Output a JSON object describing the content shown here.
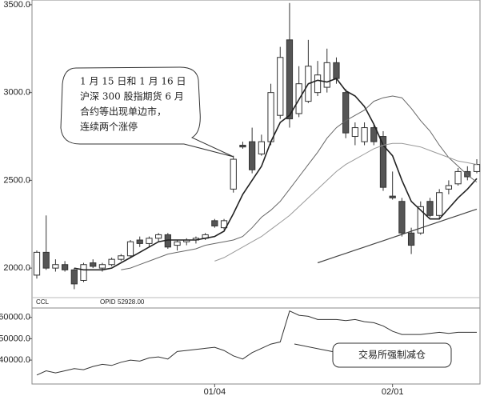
{
  "chart_data": [
    {
      "type": "candlestick",
      "categories": [
        null,
        null,
        null,
        null,
        null,
        null,
        null,
        null,
        null,
        null,
        null,
        null,
        null,
        null,
        null,
        null,
        null,
        null,
        null,
        "01/04",
        null,
        null,
        null,
        null,
        null,
        null,
        null,
        null,
        null,
        null,
        null,
        null,
        null,
        null,
        null,
        null,
        null,
        null,
        "02/01",
        null,
        null,
        null,
        null,
        null,
        null,
        null,
        null,
        null
      ],
      "open": [
        1960,
        2090,
        2000,
        2020,
        1990,
        1930,
        2030,
        2000,
        2020,
        2050,
        2070,
        2160,
        2140,
        2170,
        2190,
        2130,
        2150,
        2160,
        2170,
        2270,
        2230,
        2450,
        2700,
        2720,
        2650,
        2720,
        2870,
        3300,
        2880,
        2950,
        3000,
        3030,
        3170,
        3000,
        2750,
        2720,
        2800,
        2750,
        2410,
        2380,
        2200,
        2200,
        2380,
        2300,
        2450,
        2480,
        2550,
        2550
      ],
      "high": [
        2100,
        2300,
        2050,
        2040,
        2000,
        2030,
        2050,
        2030,
        2060,
        2080,
        2160,
        2180,
        2180,
        2200,
        2200,
        2160,
        2170,
        2180,
        2200,
        2280,
        2280,
        2640,
        2720,
        2800,
        2760,
        3050,
        3260,
        3510,
        3150,
        3300,
        3180,
        3250,
        3200,
        3020,
        2830,
        2830,
        2820,
        2780,
        2550,
        2400,
        2230,
        2380,
        2400,
        2450,
        2500,
        2570,
        2580,
        2620
      ],
      "low": [
        1940,
        1990,
        1980,
        1980,
        1880,
        1920,
        2000,
        1980,
        2010,
        2040,
        2060,
        2120,
        2120,
        2150,
        2110,
        2100,
        2130,
        2140,
        2160,
        2230,
        2220,
        2430,
        2680,
        2540,
        2640,
        2700,
        2850,
        2800,
        2860,
        2940,
        2980,
        3000,
        3050,
        2740,
        2700,
        2700,
        2700,
        2440,
        2390,
        2180,
        2080,
        2190,
        2290,
        2280,
        2420,
        2470,
        2500,
        2540
      ],
      "close": [
        2090,
        2000,
        2020,
        1990,
        1910,
        2020,
        2010,
        2020,
        2050,
        2070,
        2150,
        2140,
        2170,
        2190,
        2120,
        2150,
        2160,
        2170,
        2190,
        2240,
        2270,
        2620,
        2690,
        2560,
        2720,
        3000,
        3200,
        2850,
        3050,
        3150,
        3100,
        3170,
        3080,
        2770,
        2800,
        2800,
        2720,
        2460,
        2400,
        2200,
        2130,
        2350,
        2300,
        2430,
        2470,
        2550,
        2520,
        2590
      ],
      "series": [
        {
          "color": "#222222",
          "width": 1.6,
          "values": [
            null,
            null,
            null,
            null,
            2000,
            1990,
            1990,
            1990,
            2000,
            2030,
            2060,
            2090,
            2120,
            2150,
            2160,
            2160,
            2160,
            2160,
            2170,
            2180,
            2210,
            2310,
            2420,
            2500,
            2580,
            2720,
            2830,
            2870,
            2960,
            3050,
            3070,
            3060,
            3080,
            3010,
            2980,
            2920,
            2820,
            2700,
            2640,
            2500,
            2380,
            2330,
            2280,
            2280,
            2340,
            2400,
            2450,
            2510
          ]
        },
        {
          "color": "#666666",
          "width": 1,
          "values": [
            null,
            null,
            null,
            null,
            null,
            null,
            null,
            null,
            null,
            1990,
            2000,
            2020,
            2040,
            2060,
            2080,
            2090,
            2100,
            2110,
            2130,
            2140,
            2150,
            2160,
            2180,
            2230,
            2290,
            2330,
            2380,
            2450,
            2520,
            2590,
            2660,
            2740,
            2800,
            2840,
            2870,
            2900,
            2950,
            2970,
            2980,
            2970,
            2910,
            2840,
            2780,
            2700,
            2630,
            2580,
            2530,
            2490
          ]
        },
        {
          "color": "#999999",
          "width": 1,
          "values": [
            null,
            null,
            null,
            null,
            null,
            null,
            null,
            null,
            null,
            null,
            null,
            null,
            null,
            null,
            null,
            null,
            null,
            null,
            null,
            2040,
            2060,
            2090,
            2120,
            2150,
            2180,
            2220,
            2260,
            2300,
            2350,
            2400,
            2450,
            2500,
            2550,
            2590,
            2620,
            2650,
            2680,
            2700,
            2710,
            2710,
            2700,
            2690,
            2670,
            2650,
            2630,
            2610,
            2600,
            2590
          ]
        },
        {
          "color": "#444444",
          "width": 1.2,
          "values": [
            null,
            null,
            null,
            null,
            null,
            null,
            null,
            null,
            null,
            null,
            null,
            null,
            null,
            null,
            null,
            null,
            null,
            null,
            null,
            null,
            null,
            null,
            null,
            null,
            null,
            null,
            null,
            null,
            null,
            null,
            2030,
            2048,
            2066,
            2084,
            2102,
            2120,
            2138,
            2156,
            2174,
            2192,
            2210,
            2228,
            2246,
            2264,
            2282,
            2300,
            2318,
            2336
          ]
        }
      ],
      "ylim": [
        1832,
        3527
      ],
      "yticks": [
        {
          "value": 2000,
          "label": "2000.0"
        },
        {
          "value": 2500,
          "label": "2500.0"
        },
        {
          "value": 3000,
          "label": "3000.0"
        },
        {
          "value": 3500,
          "label": "3500.0"
        }
      ],
      "annotation": [
        "1 月 15 日和 1 月 16 日",
        "沪深 300 股指期货 6 月",
        "合约等出现单边市，",
        "连续两个涨停"
      ]
    },
    {
      "type": "line",
      "title": "CCL",
      "series": [
        {
          "name": "OPID",
          "color": "#333333",
          "values": [
            33000,
            35000,
            34000,
            35000,
            36000,
            35500,
            37000,
            38000,
            37500,
            39000,
            40000,
            39500,
            41000,
            41500,
            40500,
            44000,
            44500,
            45000,
            45500,
            46000,
            44500,
            42000,
            40500,
            43500,
            45500,
            47500,
            48500,
            63000,
            61000,
            60500,
            59000,
            59000,
            59000,
            58500,
            59000,
            58000,
            57500,
            56000,
            53500,
            52000,
            52000,
            52000,
            52500,
            53000,
            52500,
            53000,
            53000,
            53000
          ]
        }
      ],
      "legend_value": {
        "value": 52928,
        "label": "52928.00"
      },
      "ylim": [
        28800,
        64400
      ],
      "yticks": [
        {
          "value": 40000,
          "label": "40000.0"
        },
        {
          "value": 50000,
          "label": "50000.0"
        },
        {
          "value": 60000,
          "label": "60000.0"
        }
      ],
      "annotation": "交易所强制减仓"
    }
  ]
}
